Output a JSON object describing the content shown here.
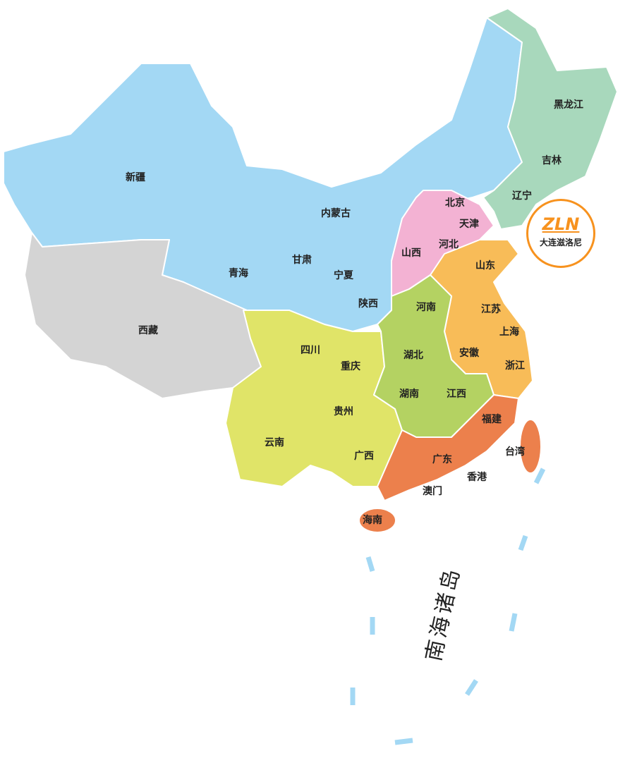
{
  "colors": {
    "northwest": "#a3d8f4",
    "tibet": "#d4d4d4",
    "northeast": "#a8d8bc",
    "north": "#f3b2d3",
    "east": "#f8bc58",
    "southwest": "#e0e468",
    "central": "#b4d262",
    "south": "#ec804c",
    "sea_dash": "#a3d8f4",
    "logo": "#f7921e"
  },
  "regions": [
    {
      "name": "新疆"
    },
    {
      "name": "西藏"
    },
    {
      "name": "青海"
    },
    {
      "name": "甘肃"
    },
    {
      "name": "内蒙古"
    },
    {
      "name": "宁夏"
    },
    {
      "name": "陕西"
    },
    {
      "name": "黑龙江"
    },
    {
      "name": "吉林"
    },
    {
      "name": "辽宁"
    },
    {
      "name": "北京"
    },
    {
      "name": "天津"
    },
    {
      "name": "河北"
    },
    {
      "name": "山西"
    },
    {
      "name": "山东"
    },
    {
      "name": "江苏"
    },
    {
      "name": "上海"
    },
    {
      "name": "安徽"
    },
    {
      "name": "浙江"
    },
    {
      "name": "河南"
    },
    {
      "name": "湖北"
    },
    {
      "name": "湖南"
    },
    {
      "name": "江西"
    },
    {
      "name": "四川"
    },
    {
      "name": "重庆"
    },
    {
      "name": "贵州"
    },
    {
      "name": "云南"
    },
    {
      "name": "广西"
    },
    {
      "name": "福建"
    },
    {
      "name": "广东"
    },
    {
      "name": "香港"
    },
    {
      "name": "澳门"
    },
    {
      "name": "台湾"
    },
    {
      "name": "海南"
    }
  ],
  "sea_label": "南海诸岛",
  "logo": {
    "mark": "ZLN",
    "name": "大连滋洛尼"
  }
}
